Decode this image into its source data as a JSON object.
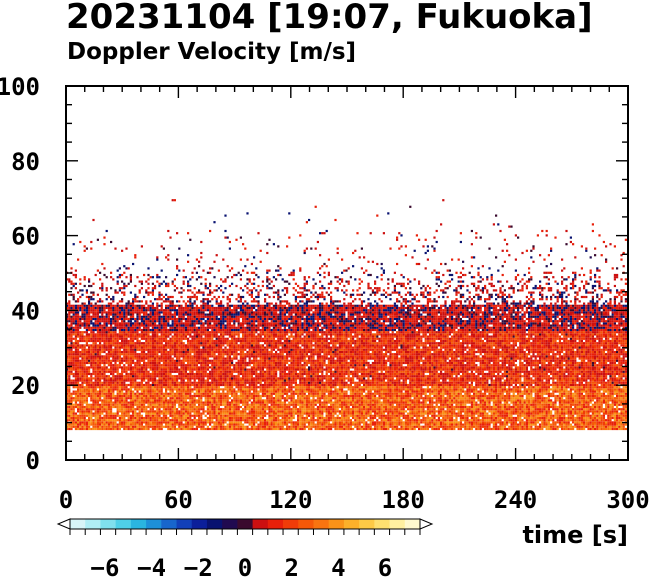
{
  "header": {
    "title": "20231104 [19:07, Fukuoka]",
    "subtitle": "Doppler Velocity [m/s]"
  },
  "chart_data": {
    "type": "heatmap",
    "title": "20231104 [19:07, Fukuoka]",
    "subtitle": "Doppler Velocity [m/s]",
    "xlabel": "time [s]",
    "ylabel": "",
    "xlim": [
      0,
      300
    ],
    "ylim": [
      0,
      100
    ],
    "x_ticks": [
      "0",
      "60",
      "120",
      "180",
      "240",
      "300"
    ],
    "y_ticks": [
      "0",
      "20",
      "40",
      "60",
      "80",
      "100"
    ],
    "data_height_range": [
      8,
      70
    ],
    "dense_echo_top": 42,
    "colorbar": {
      "min": -7.5,
      "max": 7.5,
      "ticks": [
        "−6",
        "−4",
        "−2",
        "0",
        "2",
        "4",
        "6"
      ],
      "tick_values": [
        -6,
        -4,
        -2,
        0,
        2,
        4,
        6
      ],
      "colors": [
        "#d9f5f8",
        "#b0eef5",
        "#80e0ee",
        "#4fd0e8",
        "#2ab5e0",
        "#1e90d8",
        "#1866cc",
        "#1240b8",
        "#0b1f9a",
        "#081270",
        "#200a50",
        "#3a0a2e",
        "#cc1010",
        "#e8200a",
        "#f03c08",
        "#f55808",
        "#f87410",
        "#fa9218",
        "#fcb02a",
        "#fdca46",
        "#fee070",
        "#fff0a0",
        "#fff9cf"
      ]
    }
  }
}
